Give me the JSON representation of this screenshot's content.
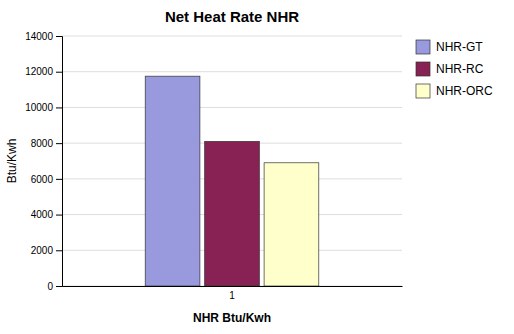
{
  "chart_data": {
    "type": "bar",
    "title": "Net Heat Rate NHR",
    "xlabel": "NHR Btu/Kwh",
    "ylabel": "Btu/Kwh",
    "categories": [
      "1"
    ],
    "series": [
      {
        "name": "NHR-GT",
        "color": "#9999dd",
        "values": [
          11750
        ]
      },
      {
        "name": "NHR-RC",
        "color": "#882255",
        "values": [
          8100
        ]
      },
      {
        "name": "NHR-ORC",
        "color": "#ffffcc",
        "values": [
          6900
        ]
      }
    ],
    "ylim": [
      0,
      14000
    ],
    "yticks": [
      0,
      2000,
      4000,
      6000,
      8000,
      10000,
      12000,
      14000
    ],
    "grid": true,
    "legend": "right"
  }
}
